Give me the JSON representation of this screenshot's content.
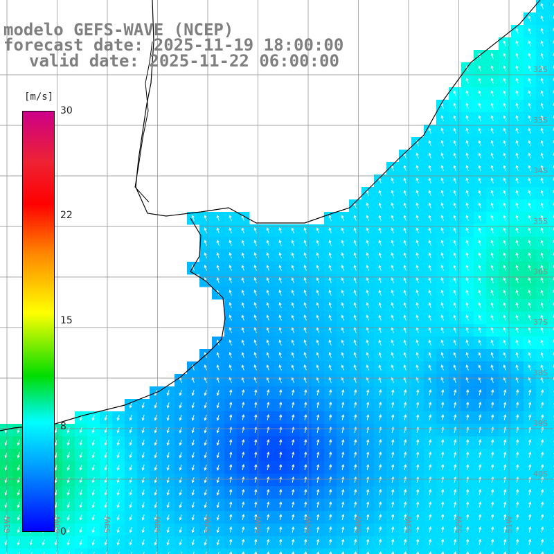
{
  "title": {
    "model": "modelo GEFS-WAVE (NCEP)",
    "forecast": "forecast date: 2025-11-19 18:00:00",
    "valid": "valid date: 2025-11-22 06:00:00"
  },
  "colorbar": {
    "unit": "[m/s]",
    "ticks": [
      "30",
      "22",
      "15",
      "8",
      "0"
    ],
    "colors": [
      "#cc0088",
      "#ff0000",
      "#ff8800",
      "#ffff00",
      "#00dd00",
      "#00ffff",
      "#0099ff",
      "#0000ff"
    ]
  },
  "map": {
    "lat_labels": [
      "32S",
      "33S",
      "34S",
      "35S",
      "36S",
      "37S",
      "38S",
      "39S",
      "40S"
    ],
    "lon_labels": [
      "61W",
      "60W",
      "59W",
      "58W",
      "57W",
      "56W",
      "55W",
      "54W",
      "53W",
      "52W",
      "51W"
    ],
    "field": "wind speed with direction arrows",
    "colors": {
      "land": "#ffffff",
      "coast": "#000000",
      "grid": "#888888",
      "label": "#8a8a8a"
    }
  }
}
